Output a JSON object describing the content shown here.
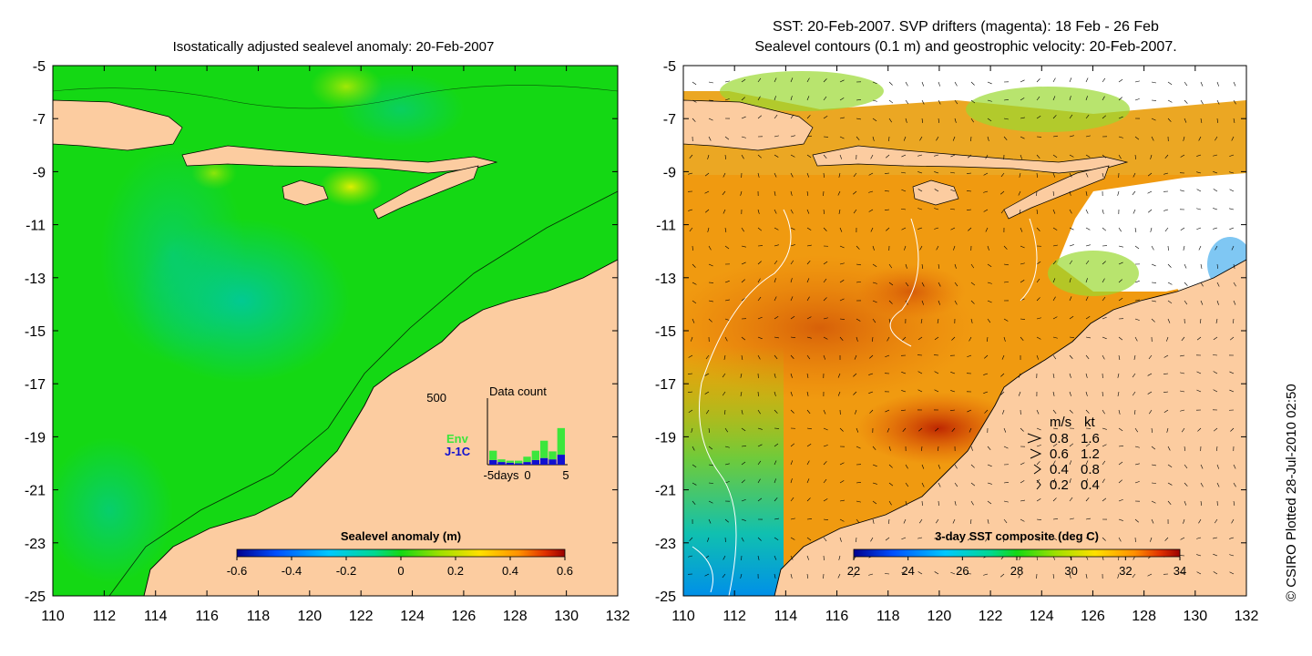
{
  "chart_data": [
    {
      "type": "heatmap",
      "title": "Isostatically adjusted sealevel anomaly: 20-Feb-2007",
      "xlim": [
        110,
        132
      ],
      "ylim": [
        -25,
        -5
      ],
      "x_ticks": [
        110,
        112,
        114,
        116,
        118,
        120,
        122,
        124,
        126,
        128,
        130,
        132
      ],
      "y_ticks": [
        -5,
        -7,
        -9,
        -11,
        -13,
        -15,
        -17,
        -19,
        -21,
        -23,
        -25
      ],
      "colorbar": {
        "label": "Sealevel anomaly (m)",
        "ticks": [
          -0.6,
          -0.4,
          -0.2,
          0,
          0.2,
          0.4,
          0.6
        ],
        "tick_labels": [
          "-0.6",
          "-0.4",
          "-0.2",
          "0",
          "0.2",
          "0.4",
          "0.6"
        ],
        "colors": [
          "#00008f",
          "#0050ff",
          "#00c8ff",
          "#00d890",
          "#14d814",
          "#a0e000",
          "#ffe000",
          "#ff9000",
          "#e03000",
          "#9a0000"
        ]
      },
      "inset": {
        "title": "Data count",
        "ymax_label": "500",
        "series": [
          {
            "name": "Env",
            "color": "#3ce63c",
            "values": [
              70,
              20,
              15,
              20,
              40,
              70,
              130,
              60,
              200
            ]
          },
          {
            "name": "J-1C",
            "color": "#1010d0",
            "values": [
              35,
              20,
              15,
              10,
              20,
              35,
              50,
              40,
              75
            ]
          }
        ],
        "x_ticks": [
          -5,
          0,
          5
        ],
        "x_tick_labels": [
          "-5days",
          "0",
          "5"
        ]
      },
      "land_color": "#fccca0",
      "ocean_color": "#14d814"
    },
    {
      "type": "heatmap",
      "title": "SST: 20-Feb-2007. SVP drifters (magenta): 18 Feb - 26 Feb",
      "subtitle": "Sealevel contours (0.1 m) and geostrophic velocity: 20-Feb-2007.",
      "xlim": [
        110,
        132
      ],
      "ylim": [
        -25,
        -5
      ],
      "x_ticks": [
        110,
        112,
        114,
        116,
        118,
        120,
        122,
        124,
        126,
        128,
        130,
        132
      ],
      "y_ticks": [
        -5,
        -7,
        -9,
        -11,
        -13,
        -15,
        -17,
        -19,
        -21,
        -23,
        -25
      ],
      "colorbar": {
        "label": "3-day SST composite (deg C)",
        "ticks": [
          22,
          24,
          26,
          28,
          30,
          32,
          34
        ],
        "tick_labels": [
          "22",
          "24",
          "26",
          "28",
          "30",
          "32",
          "34"
        ],
        "colors": [
          "#00008f",
          "#0050ff",
          "#00c8ff",
          "#00d890",
          "#14d814",
          "#a0e000",
          "#ffe000",
          "#ff9000",
          "#e03000",
          "#9a0000"
        ]
      },
      "velocity_legend": {
        "header_ms": "m/s",
        "header_kt": "kt",
        "rows": [
          {
            "ms": "0.8",
            "kt": "1.6"
          },
          {
            "ms": "0.6",
            "kt": "1.2"
          },
          {
            "ms": "0.4",
            "kt": "0.8"
          },
          {
            "ms": "0.2",
            "kt": "0.4"
          }
        ]
      },
      "land_color": "#fccca0"
    }
  ],
  "credit": "© CSIRO Plotted 28-Jul-2010 02:50"
}
